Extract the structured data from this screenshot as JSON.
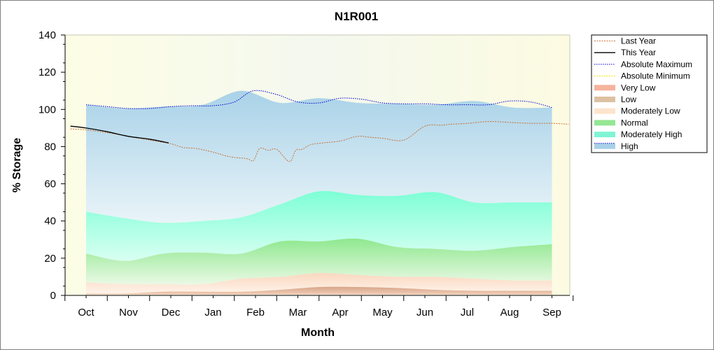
{
  "chart_data": {
    "type": "area",
    "title": "N1R001",
    "xlabel": "Month",
    "ylabel": "% Storage",
    "ylim": [
      0,
      140
    ],
    "yticks": [
      "0",
      "20",
      "40",
      "60",
      "80",
      "100",
      "120",
      "140"
    ],
    "categories": [
      "Oct",
      "Nov",
      "Dec",
      "Jan",
      "Feb",
      "Mar",
      "Apr",
      "May",
      "Jun",
      "Jul",
      "Aug",
      "Sep"
    ],
    "legend_position": "right",
    "bands": [
      {
        "name": "Very Low",
        "color": "#f4a582",
        "lower": [
          0.5,
          0.5,
          0.5,
          0.5,
          0.5,
          0.5,
          0.5,
          0.5,
          0.5,
          0.5,
          0.5,
          0.5,
          0.5
        ],
        "upper": [
          1,
          1,
          2,
          2,
          2,
          3,
          4.5,
          4.5,
          4,
          3,
          2.5,
          2.5,
          2.5
        ]
      },
      {
        "name": "Low",
        "color": "#d2b48c",
        "lower": [
          1,
          1,
          2,
          2,
          2,
          3,
          4.5,
          4.5,
          4,
          3,
          2.5,
          2.5,
          2.5
        ],
        "upper": [
          7,
          6,
          6,
          6,
          9,
          10,
          12,
          11,
          10,
          10,
          9,
          8,
          8
        ]
      },
      {
        "name": "Moderately Low",
        "color": "#fde0c5",
        "lower": [
          7,
          6,
          6,
          6,
          9,
          10,
          12,
          11,
          10,
          10,
          9,
          8,
          8
        ],
        "upper": [
          22.5,
          18.5,
          22.5,
          23,
          22.5,
          29,
          29,
          30.5,
          26,
          25,
          24,
          26,
          27.5
        ]
      },
      {
        "name": "Normal",
        "color": "#90ee90",
        "lower": [
          7,
          6,
          6,
          6,
          9,
          10,
          12,
          11,
          10,
          10,
          9,
          8,
          8
        ],
        "upper": [
          22.5,
          18.5,
          22.5,
          23,
          22.5,
          29,
          29,
          30.5,
          26,
          25,
          24,
          26,
          27.5
        ]
      },
      {
        "name": "Moderately High",
        "color": "#7fffd4",
        "lower": [
          22.5,
          18.5,
          22.5,
          23,
          22.5,
          29,
          29,
          30.5,
          26,
          25,
          24,
          26,
          27.5
        ],
        "upper": [
          45,
          41.5,
          39,
          40,
          42,
          49,
          56,
          54,
          53.5,
          55.5,
          50,
          50,
          50
        ]
      },
      {
        "name": "High",
        "color": "#a8d3e6",
        "lower": [
          45,
          41.5,
          39,
          40,
          42,
          49,
          56,
          54,
          53.5,
          55.5,
          50,
          50,
          50
        ],
        "upper": [
          102.5,
          100.5,
          101.5,
          102.5,
          110,
          103.5,
          106,
          103.5,
          103,
          102.5,
          104.5,
          101,
          101
        ]
      }
    ],
    "series": [
      {
        "name": "Last Year",
        "color": "#c87137",
        "style": "dotted",
        "x": [
          -0.37,
          0,
          0.5,
          1,
          1.5,
          2,
          2.3,
          2.6,
          3,
          3.4,
          3.8,
          3.95,
          4.1,
          4.3,
          4.5,
          4.8,
          4.95,
          5.1,
          5.3,
          5.6,
          6,
          6.4,
          6.7,
          7,
          7.5,
          8,
          8.4,
          8.6,
          9,
          9.5,
          10,
          10.5,
          11,
          11.4
        ],
        "y": [
          89.5,
          89,
          87.5,
          85.5,
          83.5,
          81.5,
          79.5,
          79,
          77,
          74.5,
          73.5,
          72.5,
          79,
          78,
          78.5,
          72,
          78,
          78.5,
          81,
          82,
          83,
          85.5,
          85,
          84.5,
          83.5,
          91,
          91.5,
          92,
          92.5,
          93.5,
          93,
          92.5,
          92.5,
          92
        ]
      },
      {
        "name": "This Year",
        "color": "#000000",
        "style": "solid",
        "x": [
          -0.37,
          0,
          0.5,
          1,
          1.5,
          1.95
        ],
        "y": [
          91,
          90,
          88,
          85.5,
          84,
          82
        ]
      }
    ],
    "absolute_maximum": {
      "name": "Absolute Maximum",
      "color": "#0000cc",
      "x": [
        0,
        0.5,
        1,
        1.5,
        2,
        2.5,
        3,
        3.5,
        3.95,
        4.5,
        5,
        5.5,
        6,
        6.5,
        7,
        7.5,
        8,
        8.5,
        9,
        9.5,
        10,
        10.5,
        11
      ],
      "y": [
        102.5,
        101.5,
        100.5,
        100.5,
        101.5,
        102,
        102,
        104,
        110,
        108,
        104,
        103.5,
        106,
        105.5,
        103.5,
        103,
        103,
        102.5,
        102.5,
        102.5,
        104.5,
        104,
        101
      ]
    },
    "absolute_minimum": {
      "name": "Absolute Minimum",
      "color": "#e6e600"
    },
    "legend": [
      "Last Year",
      "This Year",
      "Absolute Maximum",
      "Absolute Minimum",
      "Very Low",
      "Low",
      "Moderately Low",
      "Normal",
      "Moderately High",
      "High"
    ]
  }
}
